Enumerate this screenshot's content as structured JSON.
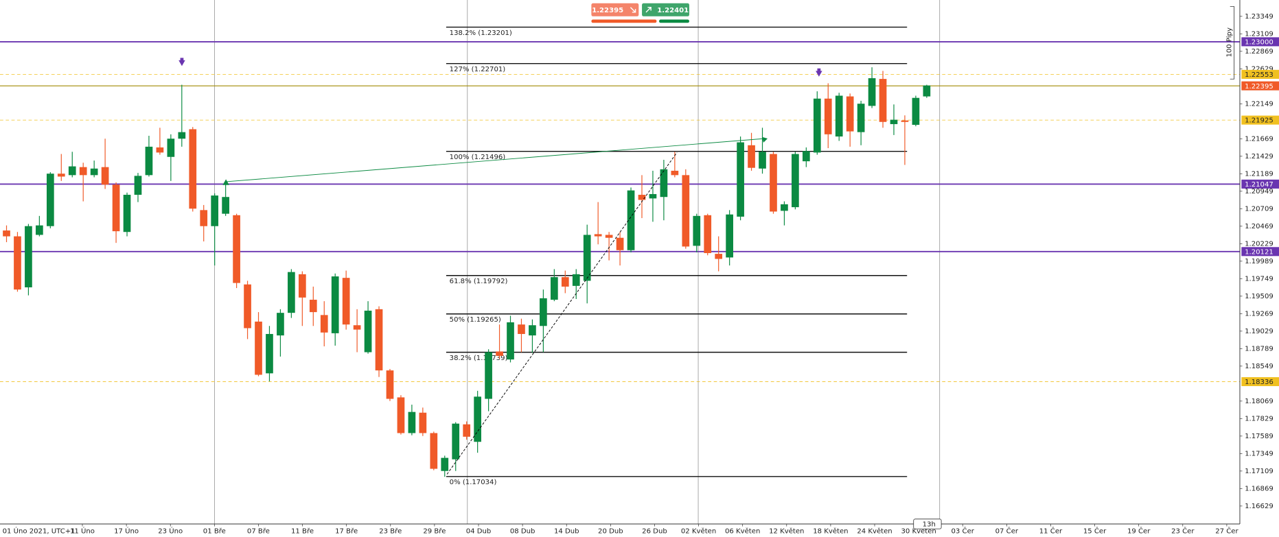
{
  "chart_data": {
    "type": "candlestick",
    "up_color": "#0b8a42",
    "down_color": "#f05a28",
    "ylim": [
      1.16383,
      1.23573
    ],
    "yticks": [
      1.23349,
      1.23109,
      1.22869,
      1.22629,
      1.22149,
      1.21669,
      1.21429,
      1.21189,
      1.20949,
      1.20709,
      1.20469,
      1.20229,
      1.19989,
      1.19749,
      1.19509,
      1.19269,
      1.19029,
      1.18789,
      1.18549,
      1.18069,
      1.17829,
      1.17589,
      1.17349,
      1.17109,
      1.16869,
      1.16629
    ],
    "x_labels": [
      "01 Úno 2021, UTC+1",
      "11 Úno",
      "17 Úno",
      "23 Úno",
      "01 Bře",
      "07 Bře",
      "11 Bře",
      "17 Bře",
      "23 Bře",
      "29 Bře",
      "04 Dub",
      "08 Dub",
      "14 Dub",
      "20 Dub",
      "26 Dub",
      "02 Květen",
      "06 Květen",
      "12 Květen",
      "18 Květen",
      "24 Květen",
      "30 Květen",
      "03 Čer",
      "07 Čer",
      "11 Čer",
      "15 Čer",
      "19 Čer",
      "23 Čer",
      "27 Čer"
    ],
    "open": [
      1.2041,
      1.2033,
      1.1963,
      1.2035,
      1.2047,
      1.2119,
      1.2117,
      1.2128,
      1.2117,
      1.2128,
      1.2104,
      1.2039,
      1.209,
      1.2117,
      1.2155,
      1.2142,
      1.2167,
      1.218,
      1.2069,
      1.2047,
      1.2064,
      1.2062,
      1.1967,
      1.1916,
      1.1845,
      1.1897,
      1.1928,
      1.1981,
      1.1946,
      1.1925,
      1.19,
      1.1976,
      1.1911,
      1.1874,
      1.1933,
      1.1849,
      1.1812,
      1.1763,
      1.1791,
      1.1763,
      1.1711,
      1.1727,
      1.1775,
      1.1751,
      1.181,
      1.1875,
      1.1864,
      1.1912,
      1.1897,
      1.191,
      1.1946,
      1.1977,
      1.1965,
      1.1972,
      1.2036,
      1.2035,
      1.2031,
      1.2014,
      1.209,
      1.2085,
      1.2087,
      1.2123,
      1.2117,
      1.202,
      1.2062,
      1.2009,
      1.2004,
      1.206,
      1.2158,
      1.2126,
      1.2146,
      1.2068,
      1.2073,
      1.2136,
      1.2148,
      1.2222,
      1.217,
      1.2225,
      1.2176,
      1.2212,
      1.2249,
      1.2187,
      1.2192,
      1.2186,
      1.2225
    ],
    "high": [
      1.2048,
      1.2039,
      1.205,
      1.2061,
      1.2121,
      1.2146,
      1.2149,
      1.2134,
      1.2137,
      1.2167,
      1.2107,
      1.2093,
      1.212,
      1.2171,
      1.2182,
      1.2173,
      1.2241,
      1.2183,
      1.2076,
      1.2092,
      1.2106,
      1.2064,
      1.1972,
      1.1929,
      1.191,
      1.1933,
      1.1988,
      1.1985,
      1.1964,
      1.1944,
      1.1982,
      1.1986,
      1.1933,
      1.1944,
      1.1937,
      1.1851,
      1.1815,
      1.1802,
      1.1798,
      1.1765,
      1.1732,
      1.1778,
      1.1779,
      1.1821,
      1.1878,
      1.1912,
      1.1924,
      1.192,
      1.1919,
      1.196,
      1.1988,
      1.1986,
      1.1988,
      1.2049,
      1.208,
      1.2039,
      1.2039,
      1.21,
      1.2117,
      1.2123,
      1.2138,
      1.2149,
      1.2125,
      1.2064,
      1.2064,
      1.2033,
      1.2069,
      1.217,
      1.2175,
      1.2182,
      1.2149,
      1.2081,
      1.2149,
      1.2155,
      1.2232,
      1.2243,
      1.223,
      1.2229,
      1.2219,
      1.2265,
      1.226,
      1.2214,
      1.2199,
      1.2226,
      1.2241
    ],
    "low": [
      1.2025,
      1.1957,
      1.1952,
      1.2033,
      1.2044,
      1.2109,
      1.2114,
      1.2081,
      1.2114,
      1.2098,
      1.2024,
      1.2033,
      1.208,
      1.2115,
      1.2145,
      1.2109,
      1.2156,
      1.2067,
      1.2026,
      1.1993,
      1.2061,
      1.1962,
      1.1892,
      1.1841,
      1.1834,
      1.1868,
      1.1921,
      1.191,
      1.191,
      1.1882,
      1.1883,
      1.1905,
      1.1874,
      1.1872,
      1.184,
      1.1807,
      1.1761,
      1.176,
      1.1759,
      1.1712,
      1.1703,
      1.1711,
      1.1754,
      1.1736,
      1.1793,
      1.1865,
      1.186,
      1.1874,
      1.1873,
      1.1874,
      1.1944,
      1.1955,
      1.1947,
      1.1941,
      1.2022,
      1.2,
      1.1993,
      1.2011,
      1.2058,
      1.2053,
      1.2055,
      1.2114,
      1.2016,
      1.2011,
      1.2007,
      1.1985,
      1.1993,
      1.2055,
      1.2123,
      1.2119,
      1.2064,
      1.2048,
      1.207,
      1.2128,
      1.2145,
      1.2154,
      1.2164,
      1.2156,
      1.2158,
      1.2209,
      1.2182,
      1.2172,
      1.2131,
      1.2184,
      1.2223
    ],
    "close": [
      1.2033,
      1.196,
      1.2047,
      1.2048,
      1.2119,
      1.2115,
      1.2129,
      1.2117,
      1.2126,
      1.2104,
      1.204,
      1.209,
      1.2116,
      1.2156,
      1.2148,
      1.2167,
      1.2176,
      1.2071,
      1.2047,
      1.2089,
      1.2087,
      1.1969,
      1.1907,
      1.1843,
      1.1899,
      1.1928,
      1.1984,
      1.1949,
      1.1929,
      1.1901,
      1.1978,
      1.1912,
      1.1905,
      1.1931,
      1.1849,
      1.181,
      1.1763,
      1.1792,
      1.1763,
      1.1714,
      1.1729,
      1.1776,
      1.1758,
      1.1813,
      1.1874,
      1.1869,
      1.1915,
      1.1899,
      1.1911,
      1.1948,
      1.1977,
      1.1964,
      1.1981,
      1.2035,
      1.2033,
      1.2031,
      1.2014,
      1.2096,
      1.2083,
      1.2091,
      1.2125,
      1.2117,
      1.2019,
      1.2061,
      1.201,
      1.2002,
      1.2063,
      1.2162,
      1.2127,
      1.2149,
      1.2067,
      1.2077,
      1.2146,
      1.215,
      1.2222,
      1.2173,
      1.2226,
      1.2177,
      1.2215,
      1.225,
      1.219,
      1.2193,
      1.219,
      1.2223,
      1.224
    ],
    "fib_levels": [
      {
        "label": "138.2% (1.23201)",
        "value": 1.23201
      },
      {
        "label": "127% (1.22701)",
        "value": 1.22701
      },
      {
        "label": "100% (1.21496)",
        "value": 1.21496
      },
      {
        "label": "61.8% (1.19792)",
        "value": 1.19792
      },
      {
        "label": "50% (1.19265)",
        "value": 1.19265
      },
      {
        "label": "38.2% (1.18739)",
        "value": 1.18739
      },
      {
        "label": "0% (1.17034)",
        "value": 1.17034
      }
    ],
    "levels": [
      {
        "value": 1.23,
        "label": "1.23000",
        "color": "#6a35b0",
        "style": "solid"
      },
      {
        "value": 1.22553,
        "label": "1.22553",
        "color": "#f0c020",
        "style": "dashed"
      },
      {
        "value": 1.22395,
        "label": "1.22395",
        "color": "#f05a28",
        "style": "bid"
      },
      {
        "value": 1.21925,
        "label": "1.21925",
        "color": "#f0c020",
        "style": "dashed"
      },
      {
        "value": 1.21047,
        "label": "1.21047",
        "color": "#6a35b0",
        "style": "solid"
      },
      {
        "value": 1.20121,
        "label": "1.20121",
        "color": "#6a35b0",
        "style": "solid"
      },
      {
        "value": 1.18336,
        "label": "1.18336",
        "color": "#f0c020",
        "style": "dashed"
      }
    ],
    "sell_price": "1.22395",
    "buy_price": "1.22401",
    "pip_label": "100 Pipy",
    "timer": "13h"
  }
}
